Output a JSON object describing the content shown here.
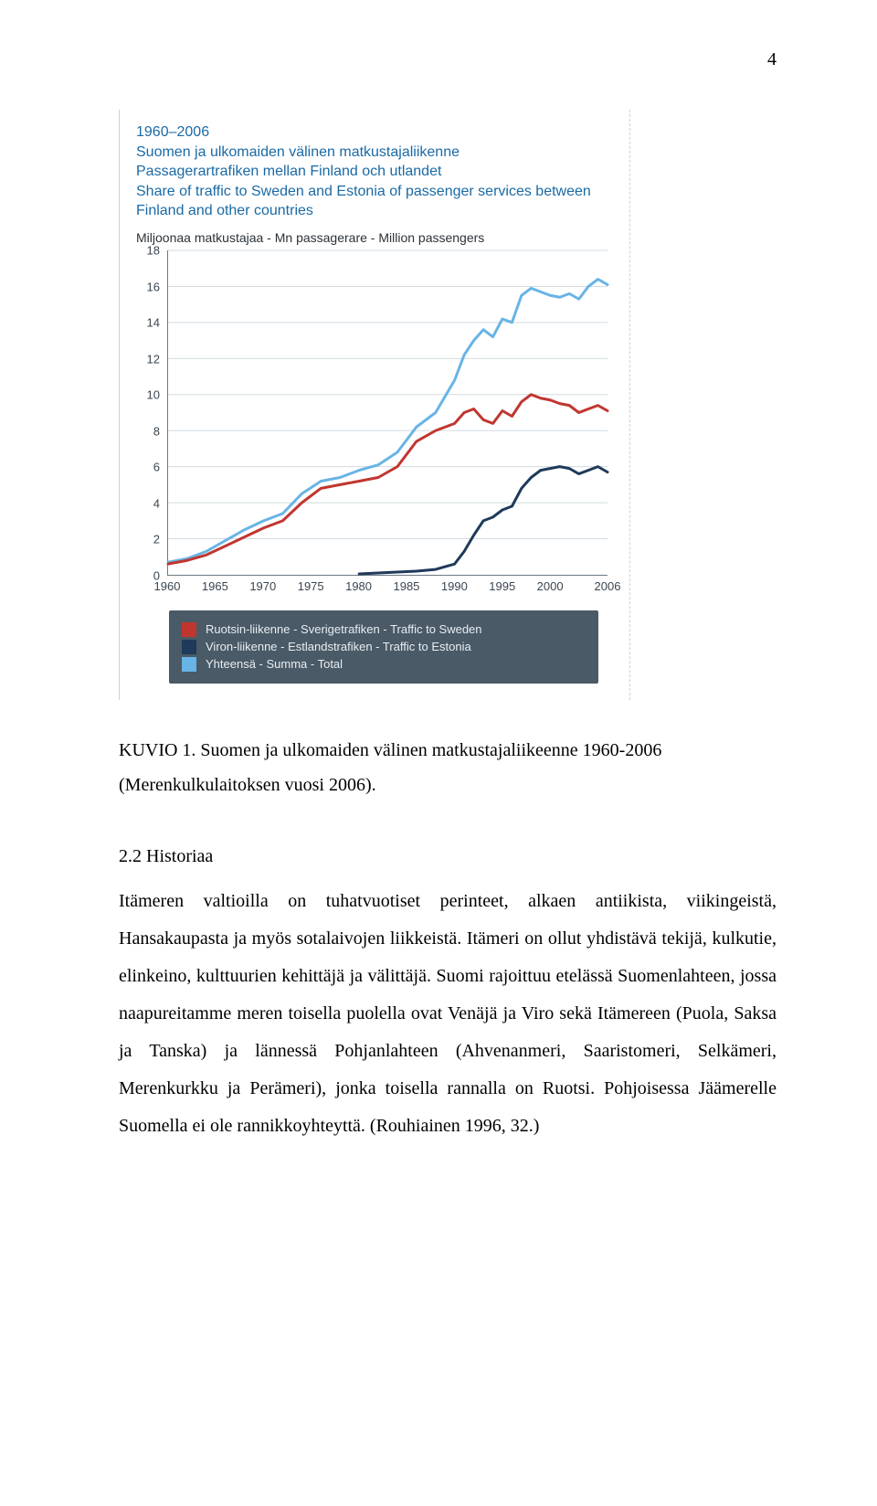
{
  "page_number": "4",
  "figure": {
    "title_lines": {
      "l1": "1960–2006",
      "l2": "Suomen ja ulkomaiden välinen matkustajaliikenne",
      "l3": "Passagerartrafiken mellan Finland och utlandet",
      "l4": "Share of traffic to Sweden and Estonia of passenger services between Finland and other countries"
    },
    "title_color": "#1a6aa5",
    "subtitle": "Miljoonaa matkustajaa - Mn passagerare - Million passengers",
    "subtitle_color": "#2b3238",
    "chart": {
      "type": "line",
      "ylim": [
        0,
        18
      ],
      "ytick_step": 2,
      "xlim": [
        1960,
        2006
      ],
      "xticks": [
        1960,
        1965,
        1970,
        1975,
        1980,
        1985,
        1990,
        1995,
        2000,
        2006
      ],
      "grid_color": "#d2dbe1",
      "axis_color": "#6a7a85",
      "tick_font_size": 13,
      "background_color": "#ffffff",
      "series": [
        {
          "name": "total",
          "color": "#68b4e6",
          "width": 3,
          "points": [
            [
              1960,
              0.7
            ],
            [
              1962,
              0.9
            ],
            [
              1964,
              1.3
            ],
            [
              1966,
              1.9
            ],
            [
              1968,
              2.5
            ],
            [
              1970,
              3.0
            ],
            [
              1972,
              3.4
            ],
            [
              1974,
              4.5
            ],
            [
              1976,
              5.2
            ],
            [
              1978,
              5.4
            ],
            [
              1980,
              5.8
            ],
            [
              1982,
              6.1
            ],
            [
              1984,
              6.8
            ],
            [
              1986,
              8.2
            ],
            [
              1988,
              9.0
            ],
            [
              1990,
              10.8
            ],
            [
              1991,
              12.2
            ],
            [
              1992,
              13.0
            ],
            [
              1993,
              13.6
            ],
            [
              1994,
              13.2
            ],
            [
              1995,
              14.2
            ],
            [
              1996,
              14.0
            ],
            [
              1997,
              15.5
            ],
            [
              1998,
              15.9
            ],
            [
              1999,
              15.7
            ],
            [
              2000,
              15.5
            ],
            [
              2001,
              15.4
            ],
            [
              2002,
              15.6
            ],
            [
              2003,
              15.3
            ],
            [
              2004,
              16.0
            ],
            [
              2005,
              16.4
            ],
            [
              2006,
              16.1
            ]
          ]
        },
        {
          "name": "sweden",
          "color": "#c0362f",
          "width": 3,
          "points": [
            [
              1960,
              0.6
            ],
            [
              1962,
              0.8
            ],
            [
              1964,
              1.1
            ],
            [
              1966,
              1.6
            ],
            [
              1968,
              2.1
            ],
            [
              1970,
              2.6
            ],
            [
              1972,
              3.0
            ],
            [
              1974,
              4.0
            ],
            [
              1976,
              4.8
            ],
            [
              1978,
              5.0
            ],
            [
              1980,
              5.2
            ],
            [
              1982,
              5.4
            ],
            [
              1984,
              6.0
            ],
            [
              1986,
              7.4
            ],
            [
              1988,
              8.0
            ],
            [
              1990,
              8.4
            ],
            [
              1991,
              9.0
            ],
            [
              1992,
              9.2
            ],
            [
              1993,
              8.6
            ],
            [
              1994,
              8.4
            ],
            [
              1995,
              9.1
            ],
            [
              1996,
              8.8
            ],
            [
              1997,
              9.6
            ],
            [
              1998,
              10.0
            ],
            [
              1999,
              9.8
            ],
            [
              2000,
              9.7
            ],
            [
              2001,
              9.5
            ],
            [
              2002,
              9.4
            ],
            [
              2003,
              9.0
            ],
            [
              2004,
              9.2
            ],
            [
              2005,
              9.4
            ],
            [
              2006,
              9.1
            ]
          ]
        },
        {
          "name": "estonia",
          "color": "#1f3a5a",
          "width": 3,
          "points": [
            [
              1980,
              0.05
            ],
            [
              1982,
              0.1
            ],
            [
              1984,
              0.15
            ],
            [
              1986,
              0.2
            ],
            [
              1988,
              0.3
            ],
            [
              1990,
              0.6
            ],
            [
              1991,
              1.3
            ],
            [
              1992,
              2.2
            ],
            [
              1993,
              3.0
            ],
            [
              1994,
              3.2
            ],
            [
              1995,
              3.6
            ],
            [
              1996,
              3.8
            ],
            [
              1997,
              4.8
            ],
            [
              1998,
              5.4
            ],
            [
              1999,
              5.8
            ],
            [
              2000,
              5.9
            ],
            [
              2001,
              6.0
            ],
            [
              2002,
              5.9
            ],
            [
              2003,
              5.6
            ],
            [
              2004,
              5.8
            ],
            [
              2005,
              6.0
            ],
            [
              2006,
              5.7
            ]
          ]
        }
      ]
    },
    "legend": {
      "bg_color": "#4a5a66",
      "text_color": "#e8eef3",
      "rows": [
        {
          "swatch": "#c0362f",
          "label": "Ruotsin-liikenne - Sverigetrafiken - Traffic to Sweden"
        },
        {
          "swatch": "#1f3a5a",
          "label": "Viron-liikenne - Estlandstrafiken - Traffic to Estonia"
        },
        {
          "swatch": "#68b4e6",
          "label": "Yhteensä - Summa - Total"
        }
      ]
    }
  },
  "caption": "KUVIO 1. Suomen ja ulkomaiden välinen matkustajaliikeenne 1960-2006 (Merenkulkulaitoksen vuosi 2006).",
  "heading": "2.2   Historiaa",
  "body": "Itämeren valtioilla on tuhatvuotiset perinteet, alkaen antiikista, viikingeistä, Hansakaupasta ja myös sotalaivojen liikkeistä. Itämeri on ollut yhdistävä tekijä, kulkutie, elinkeino, kulttuurien kehittäjä ja välittäjä. Suomi rajoittuu etelässä Suomenlahteen, jossa naapureitamme meren toisella puolella ovat Venäjä ja Viro sekä Itämereen (Puola, Saksa ja Tanska) ja lännessä Pohjanlahteen (Ahvenanmeri, Saaristomeri, Selkämeri, Merenkurkku ja Perämeri), jonka toisella rannalla on Ruotsi. Pohjoisessa Jäämerelle Suomella ei ole rannikkoyhteyttä. (Rouhiainen 1996, 32.)"
}
